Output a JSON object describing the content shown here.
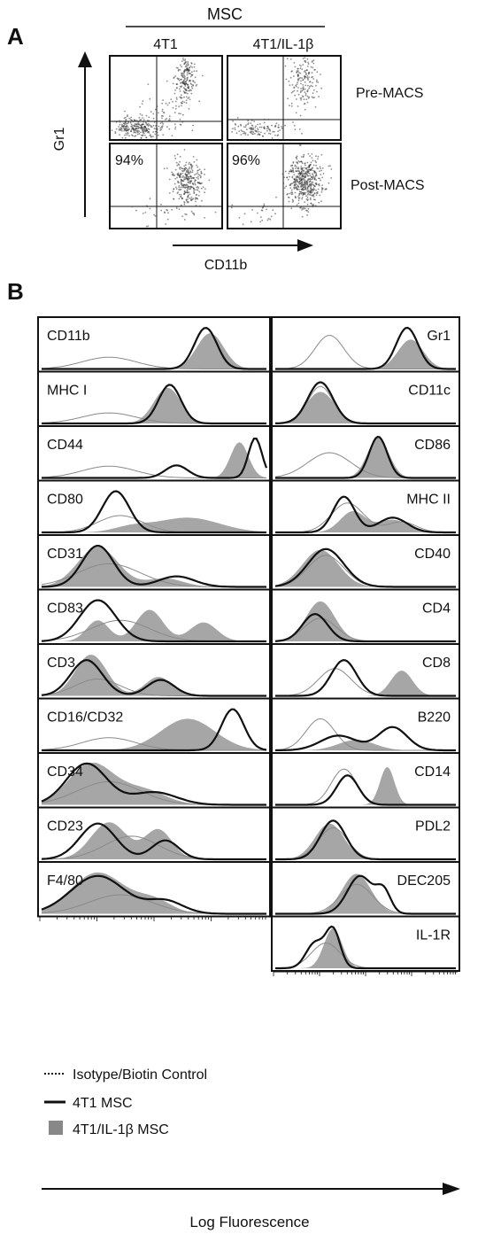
{
  "panel_a": {
    "letter": "A",
    "header": "MSC",
    "columns": [
      "4T1",
      "4T1/IL-1β"
    ],
    "rows": [
      "Pre-MACS",
      "Post-MACS"
    ],
    "y_axis_label": "Gr1",
    "x_axis_label": "CD11b",
    "percentages": [
      "94%",
      "96%"
    ]
  },
  "panel_b": {
    "letter": "B",
    "left_panels": [
      "CD11b",
      "MHC I",
      "CD44",
      "CD80",
      "CD31",
      "CD83",
      "CD3",
      "CD16/CD32",
      "CD34",
      "CD23",
      "F4/80"
    ],
    "right_panels": [
      "Gr1",
      "CD11c",
      "CD86",
      "MHC II",
      "CD40",
      "CD4",
      "CD8",
      "B220",
      "CD14",
      "PDL2",
      "DEC205",
      "IL-1R"
    ],
    "x_axis_label": "Log Fluorescence",
    "legend": [
      {
        "label": "Isotype/Biotin Control",
        "style": "dotted"
      },
      {
        "label": "4T1 MSC",
        "style": "solid"
      },
      {
        "label": "4T1/IL-1β MSC",
        "style": "filled"
      }
    ],
    "colors": {
      "filled": "#a6a6a6",
      "line": "#111111",
      "control": "#8a8a8a"
    }
  }
}
